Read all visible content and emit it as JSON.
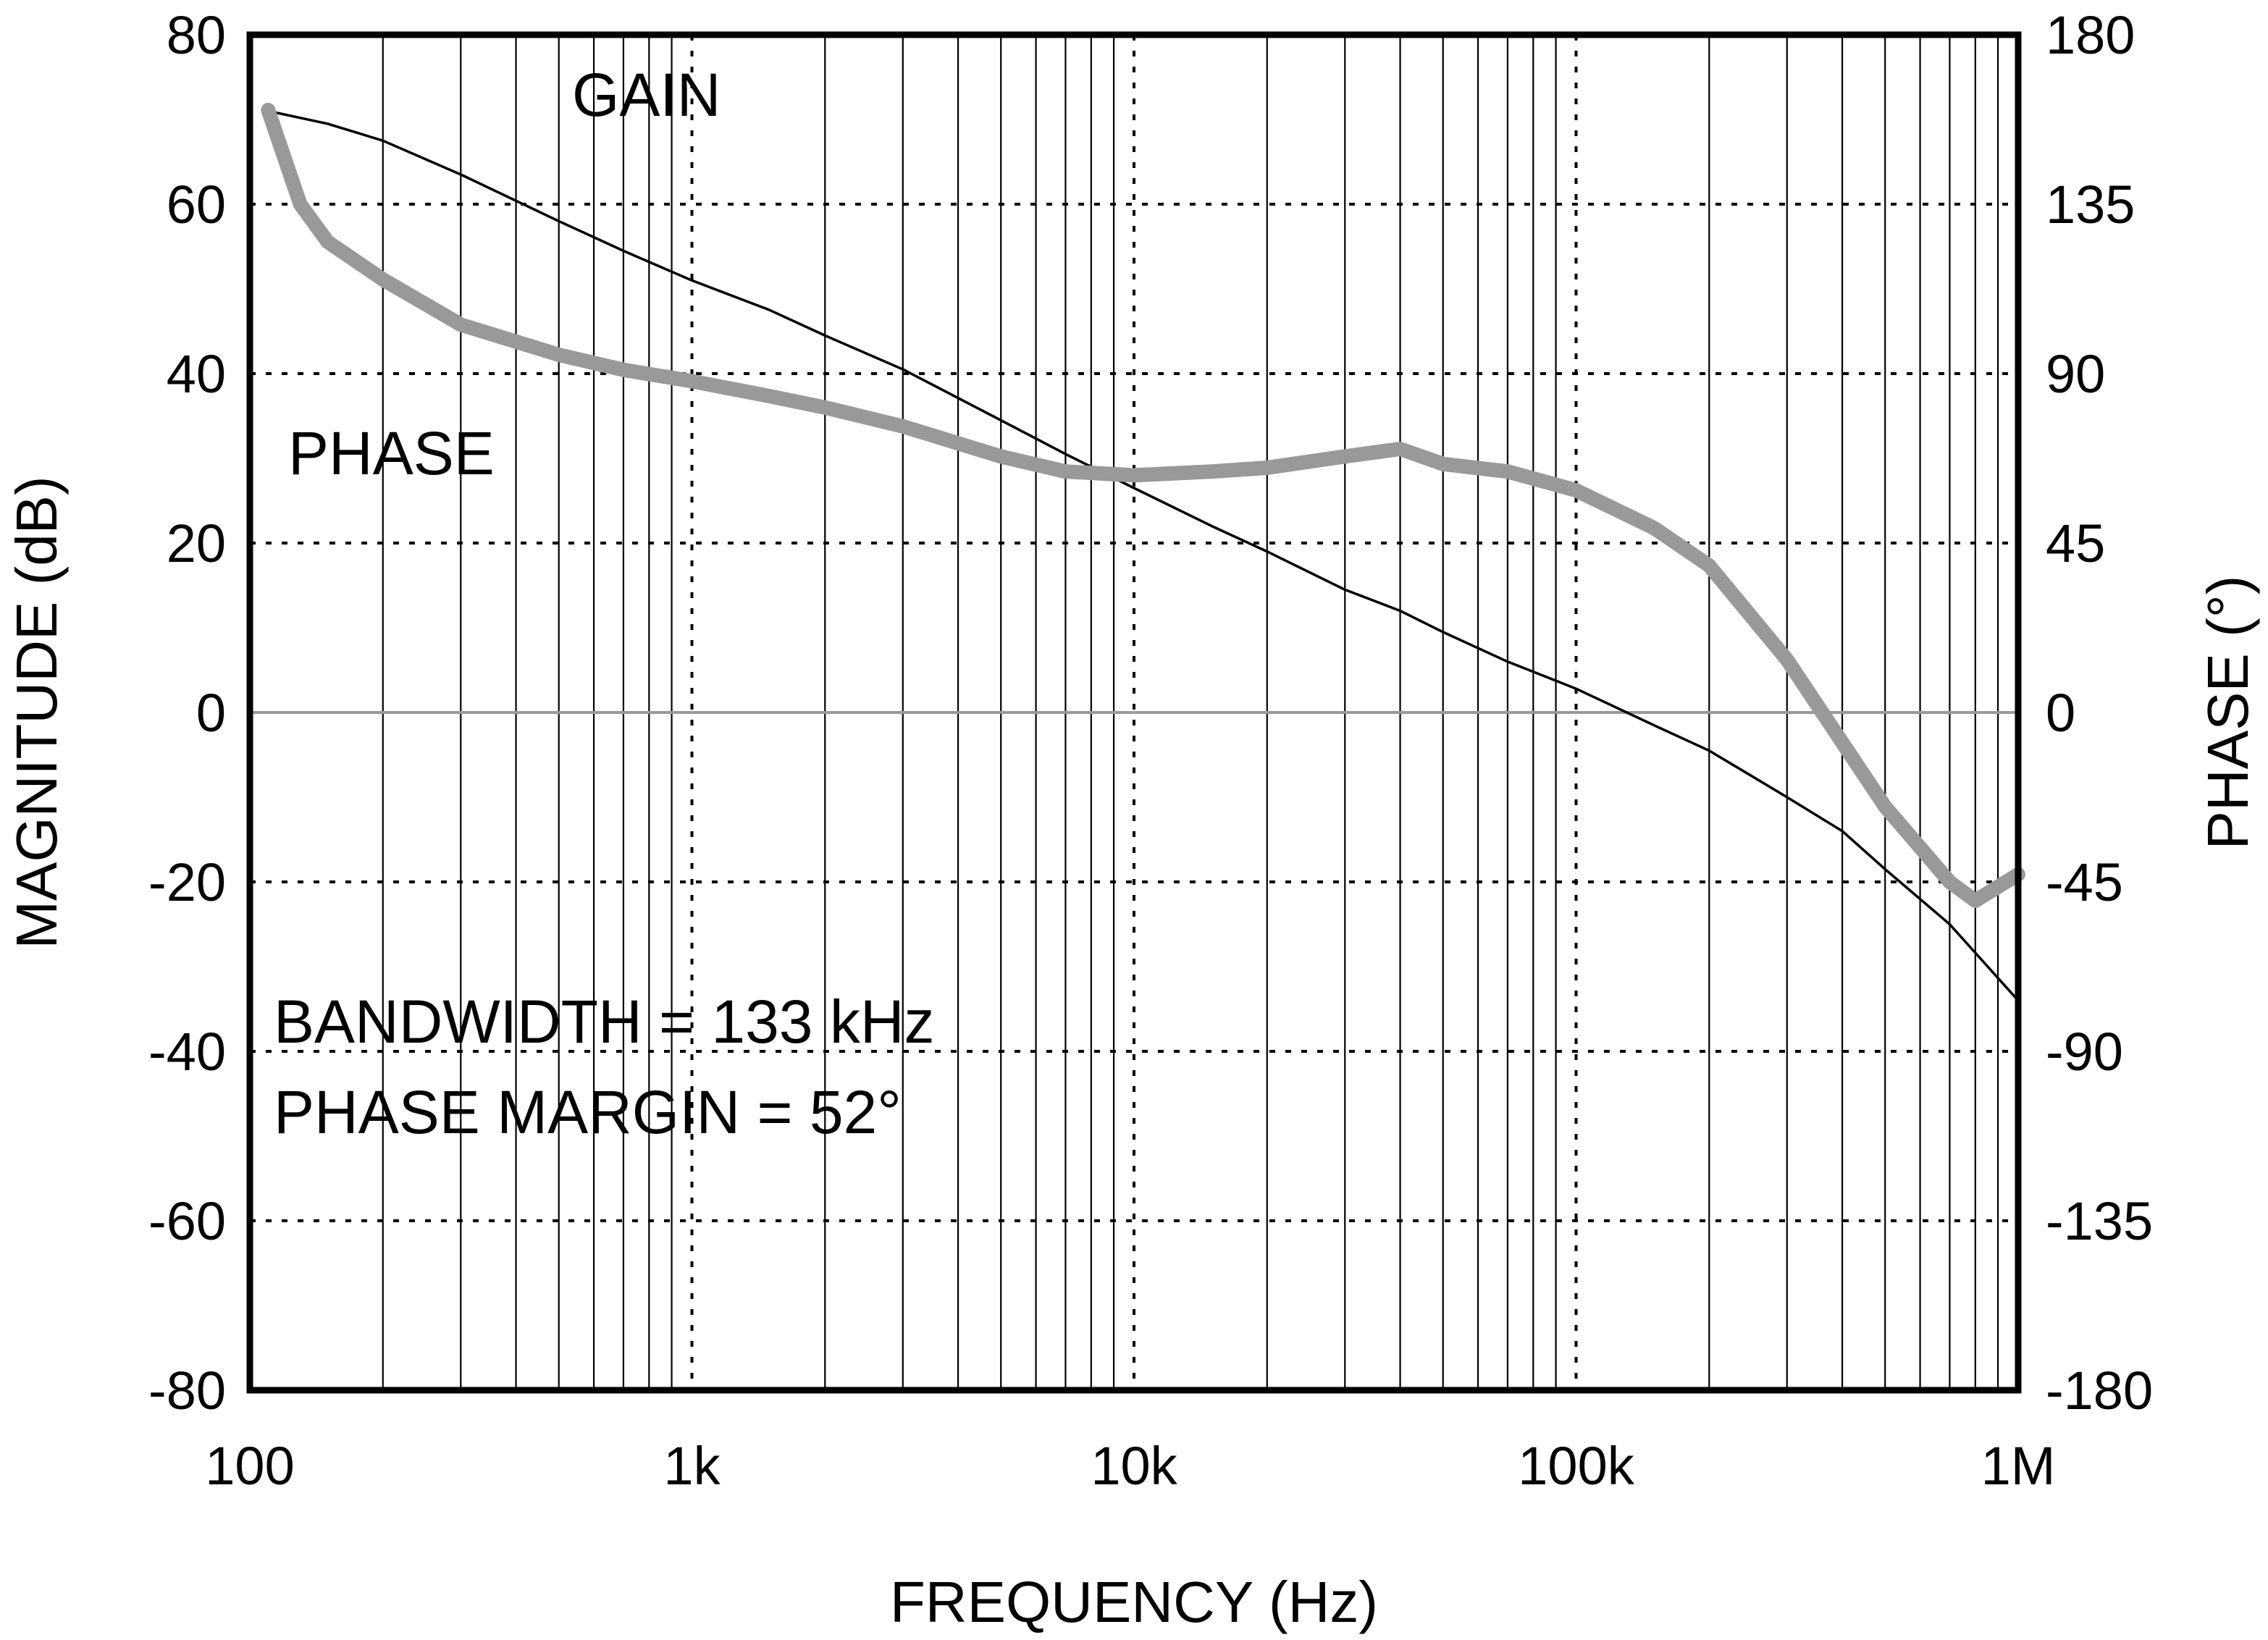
{
  "chart_data": {
    "type": "line",
    "title": "",
    "xlabel": "FREQUENCY (Hz)",
    "ylabel_left": "MAGNITUDE (dB)",
    "ylabel_right": "PHASE (°)",
    "xscale": "log",
    "xlim": [
      100,
      1000000
    ],
    "ylim_left": [
      -80,
      80
    ],
    "ylim_right": [
      -180,
      180
    ],
    "x_ticks": [
      {
        "value": 100,
        "label": "100"
      },
      {
        "value": 1000,
        "label": "1k"
      },
      {
        "value": 10000,
        "label": "10k"
      },
      {
        "value": 100000,
        "label": "100k"
      },
      {
        "value": 1000000,
        "label": "1M"
      }
    ],
    "y_ticks_left": [
      "80",
      "60",
      "40",
      "20",
      "0",
      "-20",
      "-40",
      "-60",
      "-80"
    ],
    "y_ticks_right": [
      "180",
      "135",
      "90",
      "45",
      "0",
      "-45",
      "-90",
      "-135",
      "-180"
    ],
    "grid": "on",
    "series": [
      {
        "name": "GAIN",
        "axis": "left",
        "color": "#000000",
        "x": [
          110,
          150,
          200,
          300,
          500,
          700,
          1000,
          1500,
          2000,
          3000,
          5000,
          7000,
          10000,
          15000,
          20000,
          30000,
          40000,
          50000,
          70000,
          100000,
          150000,
          200000,
          300000,
          400000,
          500000,
          700000,
          1000000
        ],
        "values": [
          71,
          69.5,
          67.5,
          63.5,
          58,
          54.5,
          51,
          47.5,
          44.5,
          40.5,
          34.5,
          30.5,
          26.5,
          22,
          19,
          14.5,
          12,
          9.5,
          6,
          2.8,
          -1.5,
          -4.5,
          -10,
          -14,
          -18.5,
          -25,
          -34
        ]
      },
      {
        "name": "PHASE",
        "axis": "right",
        "color": "#999999",
        "x": [
          110,
          130,
          150,
          200,
          300,
          500,
          700,
          1000,
          1500,
          2000,
          3000,
          5000,
          7000,
          10000,
          15000,
          20000,
          30000,
          40000,
          50000,
          70000,
          100000,
          150000,
          200000,
          300000,
          400000,
          500000,
          700000,
          800000,
          1000000
        ],
        "values": [
          160,
          135,
          125,
          115,
          103,
          95,
          91,
          88,
          84,
          81,
          76,
          68,
          64,
          63,
          64,
          65,
          68,
          70,
          66,
          64,
          59,
          49,
          39,
          14,
          -8,
          -25,
          -45,
          -50,
          -43
        ]
      }
    ],
    "annotations": [
      {
        "text": "GAIN",
        "x": 1000,
        "y_left": 73
      },
      {
        "text": "PHASE",
        "x": 300,
        "y_left": 31
      },
      {
        "text": "BANDWIDTH = 133 kHz",
        "x": 120,
        "y_left": -37
      },
      {
        "text": "PHASE MARGIN = 52°",
        "x": 120,
        "y_left": -47
      }
    ]
  }
}
